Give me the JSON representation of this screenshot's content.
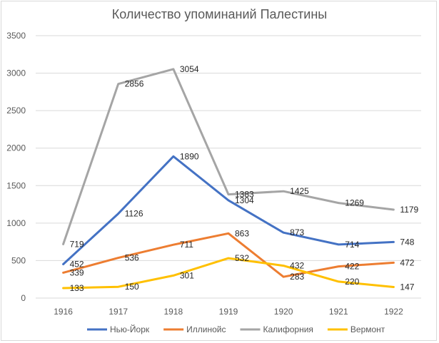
{
  "chart_data": {
    "type": "line",
    "title": "Количество упоминаний Палестины",
    "xlabel": "",
    "ylabel": "",
    "categories": [
      "1916",
      "1917",
      "1918",
      "1919",
      "1920",
      "1921",
      "1922"
    ],
    "ylim": [
      0,
      3500
    ],
    "yticks": [
      0,
      500,
      1000,
      1500,
      2000,
      2500,
      3000,
      3500
    ],
    "grid": "horizontal",
    "legend_position": "bottom",
    "series": [
      {
        "name": "Нью-Йорк",
        "color": "#4472C4",
        "values": [
          452,
          1126,
          1890,
          1304,
          873,
          714,
          748
        ]
      },
      {
        "name": "Иллинойс",
        "color": "#ED7D31",
        "values": [
          339,
          536,
          711,
          863,
          283,
          422,
          472
        ]
      },
      {
        "name": "Калифорния",
        "color": "#A5A5A5",
        "values": [
          719,
          2856,
          3054,
          1383,
          1425,
          1269,
          1179
        ]
      },
      {
        "name": "Вермонт",
        "color": "#FFC000",
        "values": [
          133,
          150,
          301,
          532,
          432,
          220,
          147
        ]
      }
    ]
  }
}
